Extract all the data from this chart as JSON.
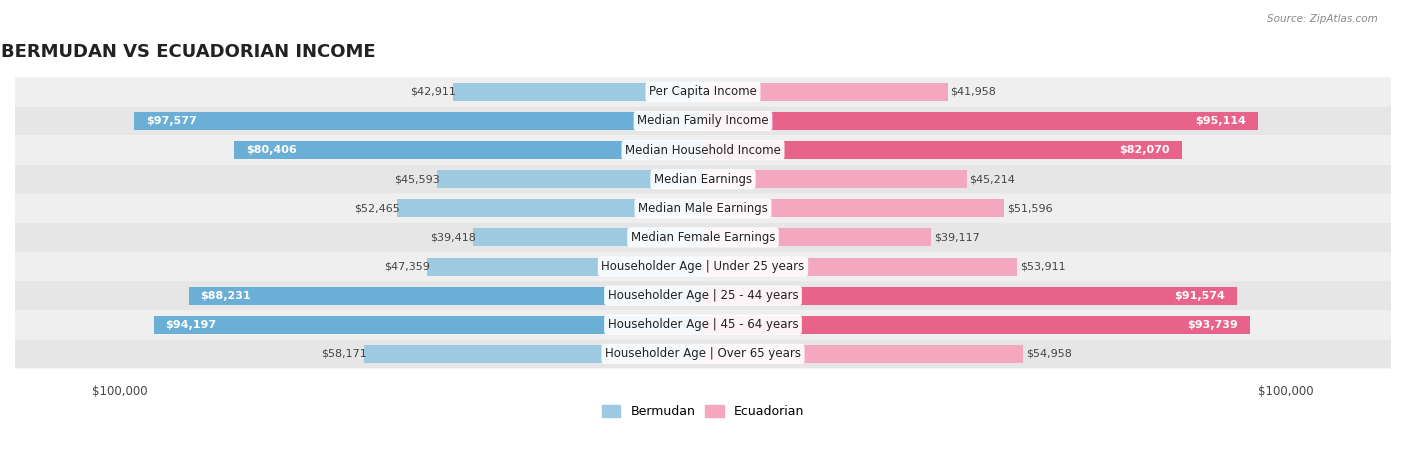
{
  "title": "BERMUDAN VS ECUADORIAN INCOME",
  "source": "Source: ZipAtlas.com",
  "categories": [
    "Per Capita Income",
    "Median Family Income",
    "Median Household Income",
    "Median Earnings",
    "Median Male Earnings",
    "Median Female Earnings",
    "Householder Age | Under 25 years",
    "Householder Age | 25 - 44 years",
    "Householder Age | 45 - 64 years",
    "Householder Age | Over 65 years"
  ],
  "bermudan_values": [
    42911,
    97577,
    80406,
    45593,
    52465,
    39418,
    47359,
    88231,
    94197,
    58171
  ],
  "ecuadorian_values": [
    41958,
    95114,
    82070,
    45214,
    51596,
    39117,
    53911,
    91574,
    93739,
    54958
  ],
  "max_value": 100000,
  "bermudan_color_normal": "#9ECAE1",
  "bermudan_color_high": "#6BAED6",
  "ecuadorian_color_normal": "#F4A8C0",
  "ecuadorian_color_high": "#E8638A",
  "high_threshold": 80000,
  "row_colors": [
    "#efefef",
    "#e6e6e6"
  ],
  "title_fontsize": 13,
  "label_fontsize": 8,
  "category_fontsize": 8.5,
  "axis_label_fontsize": 8.5
}
